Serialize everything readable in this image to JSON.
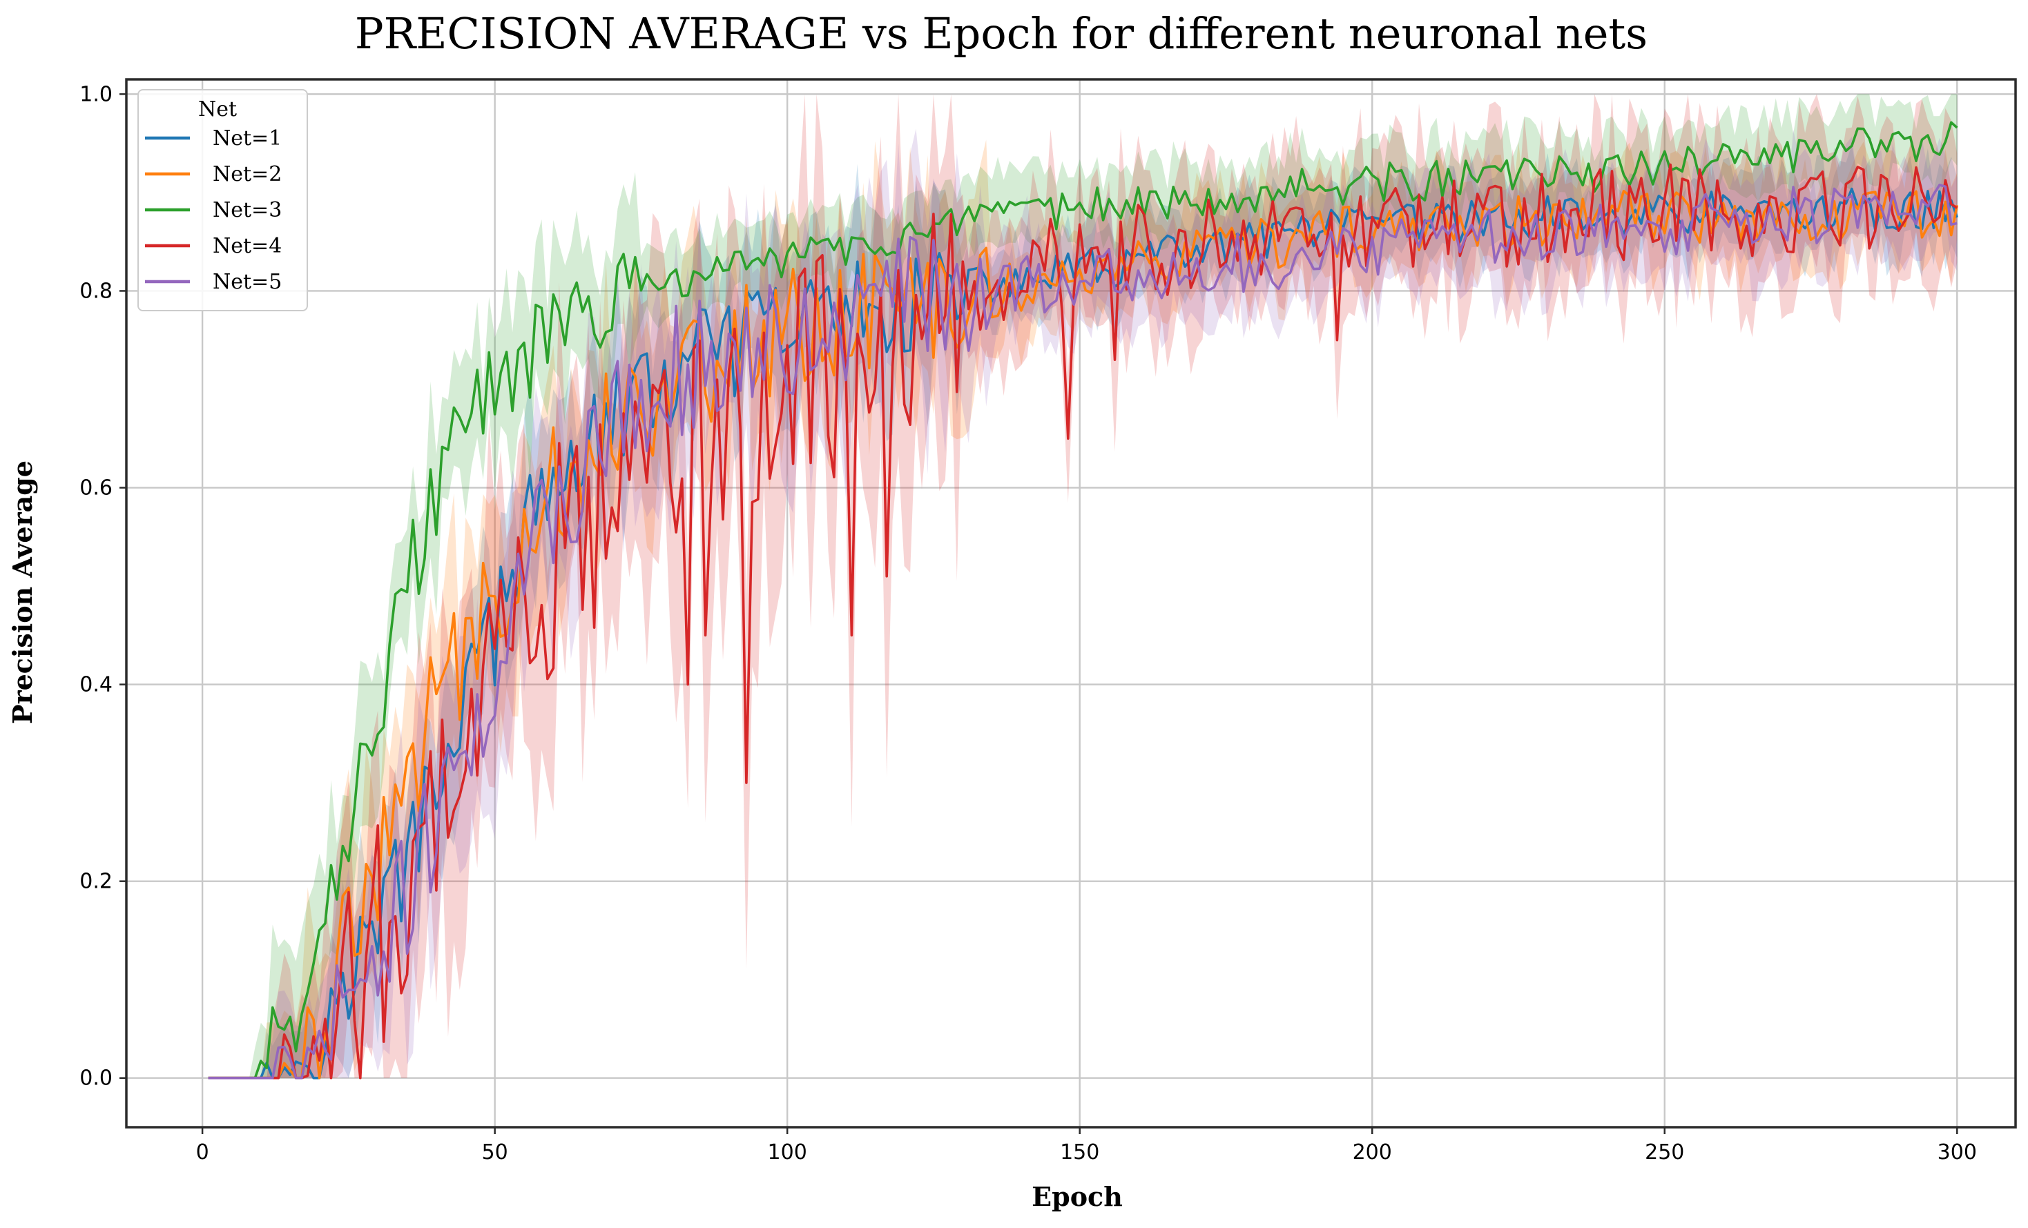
{
  "chart_data": {
    "type": "line",
    "title": "PRECISION AVERAGE vs Epoch for different neuronal nets",
    "xlabel": "Epoch",
    "ylabel": "Precision Average",
    "xlim": [
      -13,
      310
    ],
    "ylim": [
      -0.05,
      1.015
    ],
    "xticks": [
      0,
      50,
      100,
      150,
      200,
      250,
      300
    ],
    "yticks": [
      0.0,
      0.2,
      0.4,
      0.6,
      0.8,
      1.0
    ],
    "xtick_labels": [
      "0",
      "50",
      "100",
      "150",
      "200",
      "250",
      "300"
    ],
    "ytick_labels": [
      "0.0",
      "0.2",
      "0.4",
      "0.6",
      "0.8",
      "1.0"
    ],
    "grid": true,
    "legend": {
      "title": "Net",
      "location": "top-left"
    },
    "shaded_confidence_band": true,
    "series": [
      {
        "name": "Net=1",
        "color": "#1f77b4",
        "points": [
          [
            1,
            0.0
          ],
          [
            10,
            0.0
          ],
          [
            15,
            0.01
          ],
          [
            20,
            0.03
          ],
          [
            25,
            0.1
          ],
          [
            30,
            0.16
          ],
          [
            35,
            0.22
          ],
          [
            40,
            0.3
          ],
          [
            45,
            0.4
          ],
          [
            50,
            0.45
          ],
          [
            55,
            0.55
          ],
          [
            60,
            0.6
          ],
          [
            65,
            0.64
          ],
          [
            70,
            0.67
          ],
          [
            75,
            0.69
          ],
          [
            80,
            0.71
          ],
          [
            85,
            0.73
          ],
          [
            90,
            0.74
          ],
          [
            95,
            0.755
          ],
          [
            100,
            0.765
          ],
          [
            110,
            0.78
          ],
          [
            120,
            0.79
          ],
          [
            130,
            0.8
          ],
          [
            140,
            0.81
          ],
          [
            150,
            0.82
          ],
          [
            160,
            0.83
          ],
          [
            170,
            0.84
          ],
          [
            180,
            0.85
          ],
          [
            190,
            0.86
          ],
          [
            200,
            0.865
          ],
          [
            210,
            0.87
          ],
          [
            220,
            0.872
          ],
          [
            230,
            0.874
          ],
          [
            240,
            0.876
          ],
          [
            250,
            0.878
          ],
          [
            260,
            0.88
          ],
          [
            270,
            0.88
          ],
          [
            280,
            0.882
          ],
          [
            290,
            0.882
          ],
          [
            300,
            0.882
          ]
        ],
        "noise": 0.022
      },
      {
        "name": "Net=2",
        "color": "#ff7f0e",
        "points": [
          [
            1,
            0.0
          ],
          [
            10,
            0.0
          ],
          [
            15,
            0.01
          ],
          [
            20,
            0.05
          ],
          [
            25,
            0.15
          ],
          [
            30,
            0.2
          ],
          [
            35,
            0.3
          ],
          [
            40,
            0.38
          ],
          [
            45,
            0.44
          ],
          [
            50,
            0.49
          ],
          [
            55,
            0.55
          ],
          [
            60,
            0.6
          ],
          [
            65,
            0.64
          ],
          [
            70,
            0.67
          ],
          [
            75,
            0.69
          ],
          [
            80,
            0.71
          ],
          [
            85,
            0.725
          ],
          [
            90,
            0.74
          ],
          [
            95,
            0.75
          ],
          [
            100,
            0.76
          ],
          [
            110,
            0.775
          ],
          [
            120,
            0.785
          ],
          [
            130,
            0.795
          ],
          [
            140,
            0.805
          ],
          [
            150,
            0.815
          ],
          [
            160,
            0.825
          ],
          [
            170,
            0.835
          ],
          [
            180,
            0.845
          ],
          [
            190,
            0.855
          ],
          [
            200,
            0.86
          ],
          [
            210,
            0.866
          ],
          [
            220,
            0.87
          ],
          [
            230,
            0.872
          ],
          [
            240,
            0.874
          ],
          [
            250,
            0.876
          ],
          [
            260,
            0.877
          ],
          [
            270,
            0.878
          ],
          [
            280,
            0.879
          ],
          [
            290,
            0.88
          ],
          [
            300,
            0.88
          ]
        ],
        "noise": 0.028
      },
      {
        "name": "Net=3",
        "color": "#2ca02c",
        "points": [
          [
            1,
            0.0
          ],
          [
            8,
            0.0
          ],
          [
            10,
            0.01
          ],
          [
            15,
            0.05
          ],
          [
            20,
            0.17
          ],
          [
            25,
            0.25
          ],
          [
            30,
            0.38
          ],
          [
            35,
            0.5
          ],
          [
            40,
            0.6
          ],
          [
            45,
            0.66
          ],
          [
            50,
            0.7
          ],
          [
            55,
            0.73
          ],
          [
            60,
            0.76
          ],
          [
            65,
            0.775
          ],
          [
            70,
            0.79
          ],
          [
            75,
            0.8
          ],
          [
            80,
            0.81
          ],
          [
            85,
            0.815
          ],
          [
            90,
            0.82
          ],
          [
            95,
            0.83
          ],
          [
            100,
            0.835
          ],
          [
            110,
            0.845
          ],
          [
            120,
            0.855
          ],
          [
            130,
            0.865
          ],
          [
            140,
            0.875
          ],
          [
            150,
            0.885
          ],
          [
            160,
            0.89
          ],
          [
            170,
            0.895
          ],
          [
            180,
            0.9
          ],
          [
            190,
            0.905
          ],
          [
            200,
            0.91
          ],
          [
            210,
            0.912
          ],
          [
            220,
            0.915
          ],
          [
            230,
            0.918
          ],
          [
            240,
            0.921
          ],
          [
            250,
            0.926
          ],
          [
            260,
            0.932
          ],
          [
            270,
            0.938
          ],
          [
            280,
            0.944
          ],
          [
            290,
            0.95
          ],
          [
            300,
            0.955
          ]
        ],
        "noise": 0.02
      },
      {
        "name": "Net=4",
        "color": "#d62728",
        "points": [
          [
            1,
            0.0
          ],
          [
            10,
            0.0
          ],
          [
            15,
            0.005
          ],
          [
            20,
            0.02
          ],
          [
            25,
            0.08
          ],
          [
            30,
            0.14
          ],
          [
            35,
            0.2
          ],
          [
            40,
            0.27
          ],
          [
            45,
            0.35
          ],
          [
            50,
            0.42
          ],
          [
            55,
            0.48
          ],
          [
            60,
            0.52
          ],
          [
            65,
            0.55
          ],
          [
            70,
            0.58
          ],
          [
            75,
            0.6
          ],
          [
            80,
            0.63
          ],
          [
            85,
            0.65
          ],
          [
            90,
            0.66
          ],
          [
            95,
            0.68
          ],
          [
            100,
            0.7
          ],
          [
            110,
            0.73
          ],
          [
            120,
            0.77
          ],
          [
            130,
            0.8
          ],
          [
            140,
            0.82
          ],
          [
            150,
            0.83
          ],
          [
            160,
            0.84
          ],
          [
            170,
            0.845
          ],
          [
            180,
            0.85
          ],
          [
            190,
            0.855
          ],
          [
            200,
            0.86
          ],
          [
            210,
            0.863
          ],
          [
            220,
            0.866
          ],
          [
            230,
            0.87
          ],
          [
            240,
            0.874
          ],
          [
            250,
            0.878
          ],
          [
            260,
            0.882
          ],
          [
            270,
            0.885
          ],
          [
            280,
            0.888
          ],
          [
            290,
            0.892
          ],
          [
            300,
            0.895
          ]
        ],
        "noise": 0.05,
        "dips": [
          [
            83,
            0.4
          ],
          [
            86,
            0.45
          ],
          [
            93,
            0.3
          ],
          [
            111,
            0.45
          ],
          [
            117,
            0.51
          ],
          [
            148,
            0.65
          ],
          [
            156,
            0.73
          ],
          [
            194,
            0.75
          ]
        ]
      },
      {
        "name": "Net=5",
        "color": "#9467bd",
        "points": [
          [
            1,
            0.0
          ],
          [
            10,
            0.0
          ],
          [
            15,
            0.005
          ],
          [
            20,
            0.02
          ],
          [
            25,
            0.07
          ],
          [
            30,
            0.13
          ],
          [
            35,
            0.19
          ],
          [
            40,
            0.27
          ],
          [
            45,
            0.35
          ],
          [
            50,
            0.43
          ],
          [
            55,
            0.5
          ],
          [
            60,
            0.57
          ],
          [
            65,
            0.62
          ],
          [
            70,
            0.66
          ],
          [
            75,
            0.69
          ],
          [
            80,
            0.71
          ],
          [
            85,
            0.73
          ],
          [
            90,
            0.745
          ],
          [
            95,
            0.755
          ],
          [
            100,
            0.765
          ],
          [
            110,
            0.775
          ],
          [
            120,
            0.785
          ],
          [
            130,
            0.795
          ],
          [
            140,
            0.805
          ],
          [
            150,
            0.812
          ],
          [
            160,
            0.82
          ],
          [
            170,
            0.825
          ],
          [
            180,
            0.83
          ],
          [
            190,
            0.835
          ],
          [
            200,
            0.845
          ],
          [
            210,
            0.85
          ],
          [
            220,
            0.852
          ],
          [
            230,
            0.855
          ],
          [
            240,
            0.86
          ],
          [
            250,
            0.865
          ],
          [
            260,
            0.87
          ],
          [
            270,
            0.875
          ],
          [
            280,
            0.88
          ],
          [
            290,
            0.88
          ],
          [
            300,
            0.882
          ]
        ],
        "noise": 0.03
      }
    ]
  }
}
